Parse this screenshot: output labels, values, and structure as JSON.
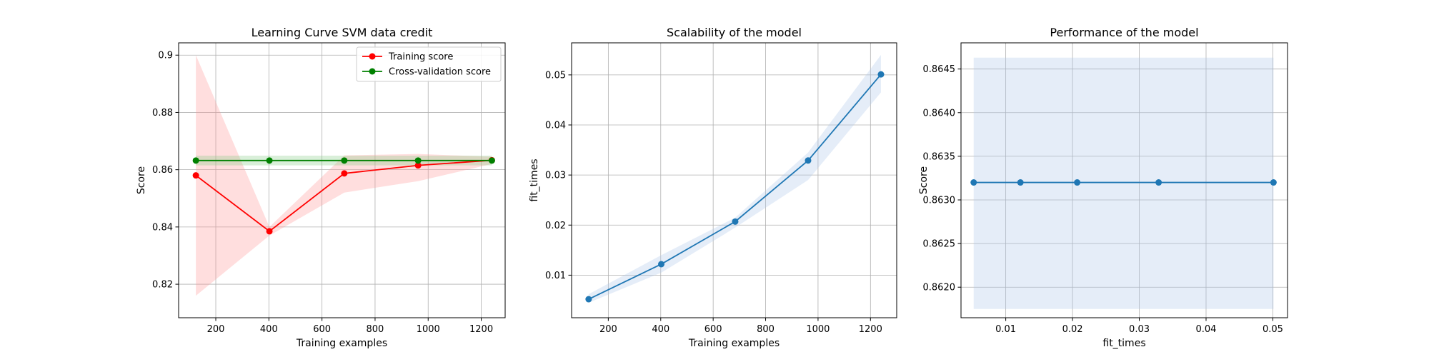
{
  "chart_data": [
    {
      "type": "line",
      "title": "Learning Curve SVM data credit",
      "xlabel": "Training examples",
      "ylabel": "Score",
      "xlim": [
        60,
        1290
      ],
      "ylim": [
        0.8083,
        0.9043
      ],
      "xticks": [
        200,
        400,
        600,
        800,
        1000,
        1200
      ],
      "yticks": [
        0.82,
        0.84,
        0.86,
        0.88,
        0.9
      ],
      "grid": true,
      "legend": "upper right",
      "x": [
        125,
        402,
        684,
        962,
        1240
      ],
      "series": [
        {
          "name": "Training score",
          "color": "#ff0000",
          "band_color": "#ff9999",
          "values": [
            0.858,
            0.8385,
            0.8587,
            0.8615,
            0.8633
          ],
          "band_low": [
            0.816,
            0.837,
            0.852,
            0.856,
            0.862
          ],
          "band_high": [
            0.9,
            0.84,
            0.865,
            0.8655,
            0.8645
          ]
        },
        {
          "name": "Cross-validation score",
          "color": "#008000",
          "band_color": "#88cc88",
          "values": [
            0.8632,
            0.8632,
            0.8632,
            0.8632,
            0.8632
          ],
          "band_low": [
            0.8615,
            0.8615,
            0.8615,
            0.8615,
            0.8615
          ],
          "band_high": [
            0.8649,
            0.8649,
            0.8649,
            0.8649,
            0.8649
          ]
        }
      ]
    },
    {
      "type": "line",
      "title": "Scalability of the model",
      "xlabel": "Training examples",
      "ylabel": "fit_times",
      "xlim": [
        60,
        1300
      ],
      "ylim": [
        0.0015,
        0.0564
      ],
      "xticks": [
        200,
        400,
        600,
        800,
        1000,
        1200
      ],
      "yticks": [
        0.01,
        0.02,
        0.03,
        0.04,
        0.05
      ],
      "grid": true,
      "x": [
        125,
        402,
        684,
        962,
        1240
      ],
      "series": [
        {
          "color": "#1f77b4",
          "band_color": "#aec7e8",
          "values": [
            0.0052,
            0.0122,
            0.0207,
            0.0329,
            0.0501
          ],
          "band_low": [
            0.0045,
            0.0105,
            0.0195,
            0.029,
            0.0465
          ],
          "band_high": [
            0.0062,
            0.014,
            0.0215,
            0.0345,
            0.054
          ]
        }
      ]
    },
    {
      "type": "line",
      "title": "Performance of the model",
      "xlabel": "fit_times",
      "ylabel": "Score",
      "xlim": [
        0.0033,
        0.0522
      ],
      "ylim": [
        0.86165,
        0.8648
      ],
      "xticks": [
        0.01,
        0.02,
        0.03,
        0.04,
        0.05
      ],
      "xtick_labels": [
        "0.01",
        "0.02",
        "0.03",
        "0.04",
        "0.05"
      ],
      "yticks": [
        0.862,
        0.8625,
        0.863,
        0.8635,
        0.864,
        0.8645
      ],
      "ytick_labels": [
        "0.8620",
        "0.8625",
        "0.8630",
        "0.8635",
        "0.8640",
        "0.8645"
      ],
      "grid": true,
      "x": [
        0.0052,
        0.0122,
        0.0207,
        0.0329,
        0.0501
      ],
      "series": [
        {
          "color": "#1f77b4",
          "band_color": "#aec7e8",
          "values": [
            0.8632,
            0.8632,
            0.8632,
            0.8632,
            0.8632
          ],
          "band_low": [
            0.86175,
            0.86175,
            0.86175,
            0.86175,
            0.86175
          ],
          "band_high": [
            0.86463,
            0.86463,
            0.86463,
            0.86463,
            0.86463
          ]
        }
      ]
    }
  ]
}
